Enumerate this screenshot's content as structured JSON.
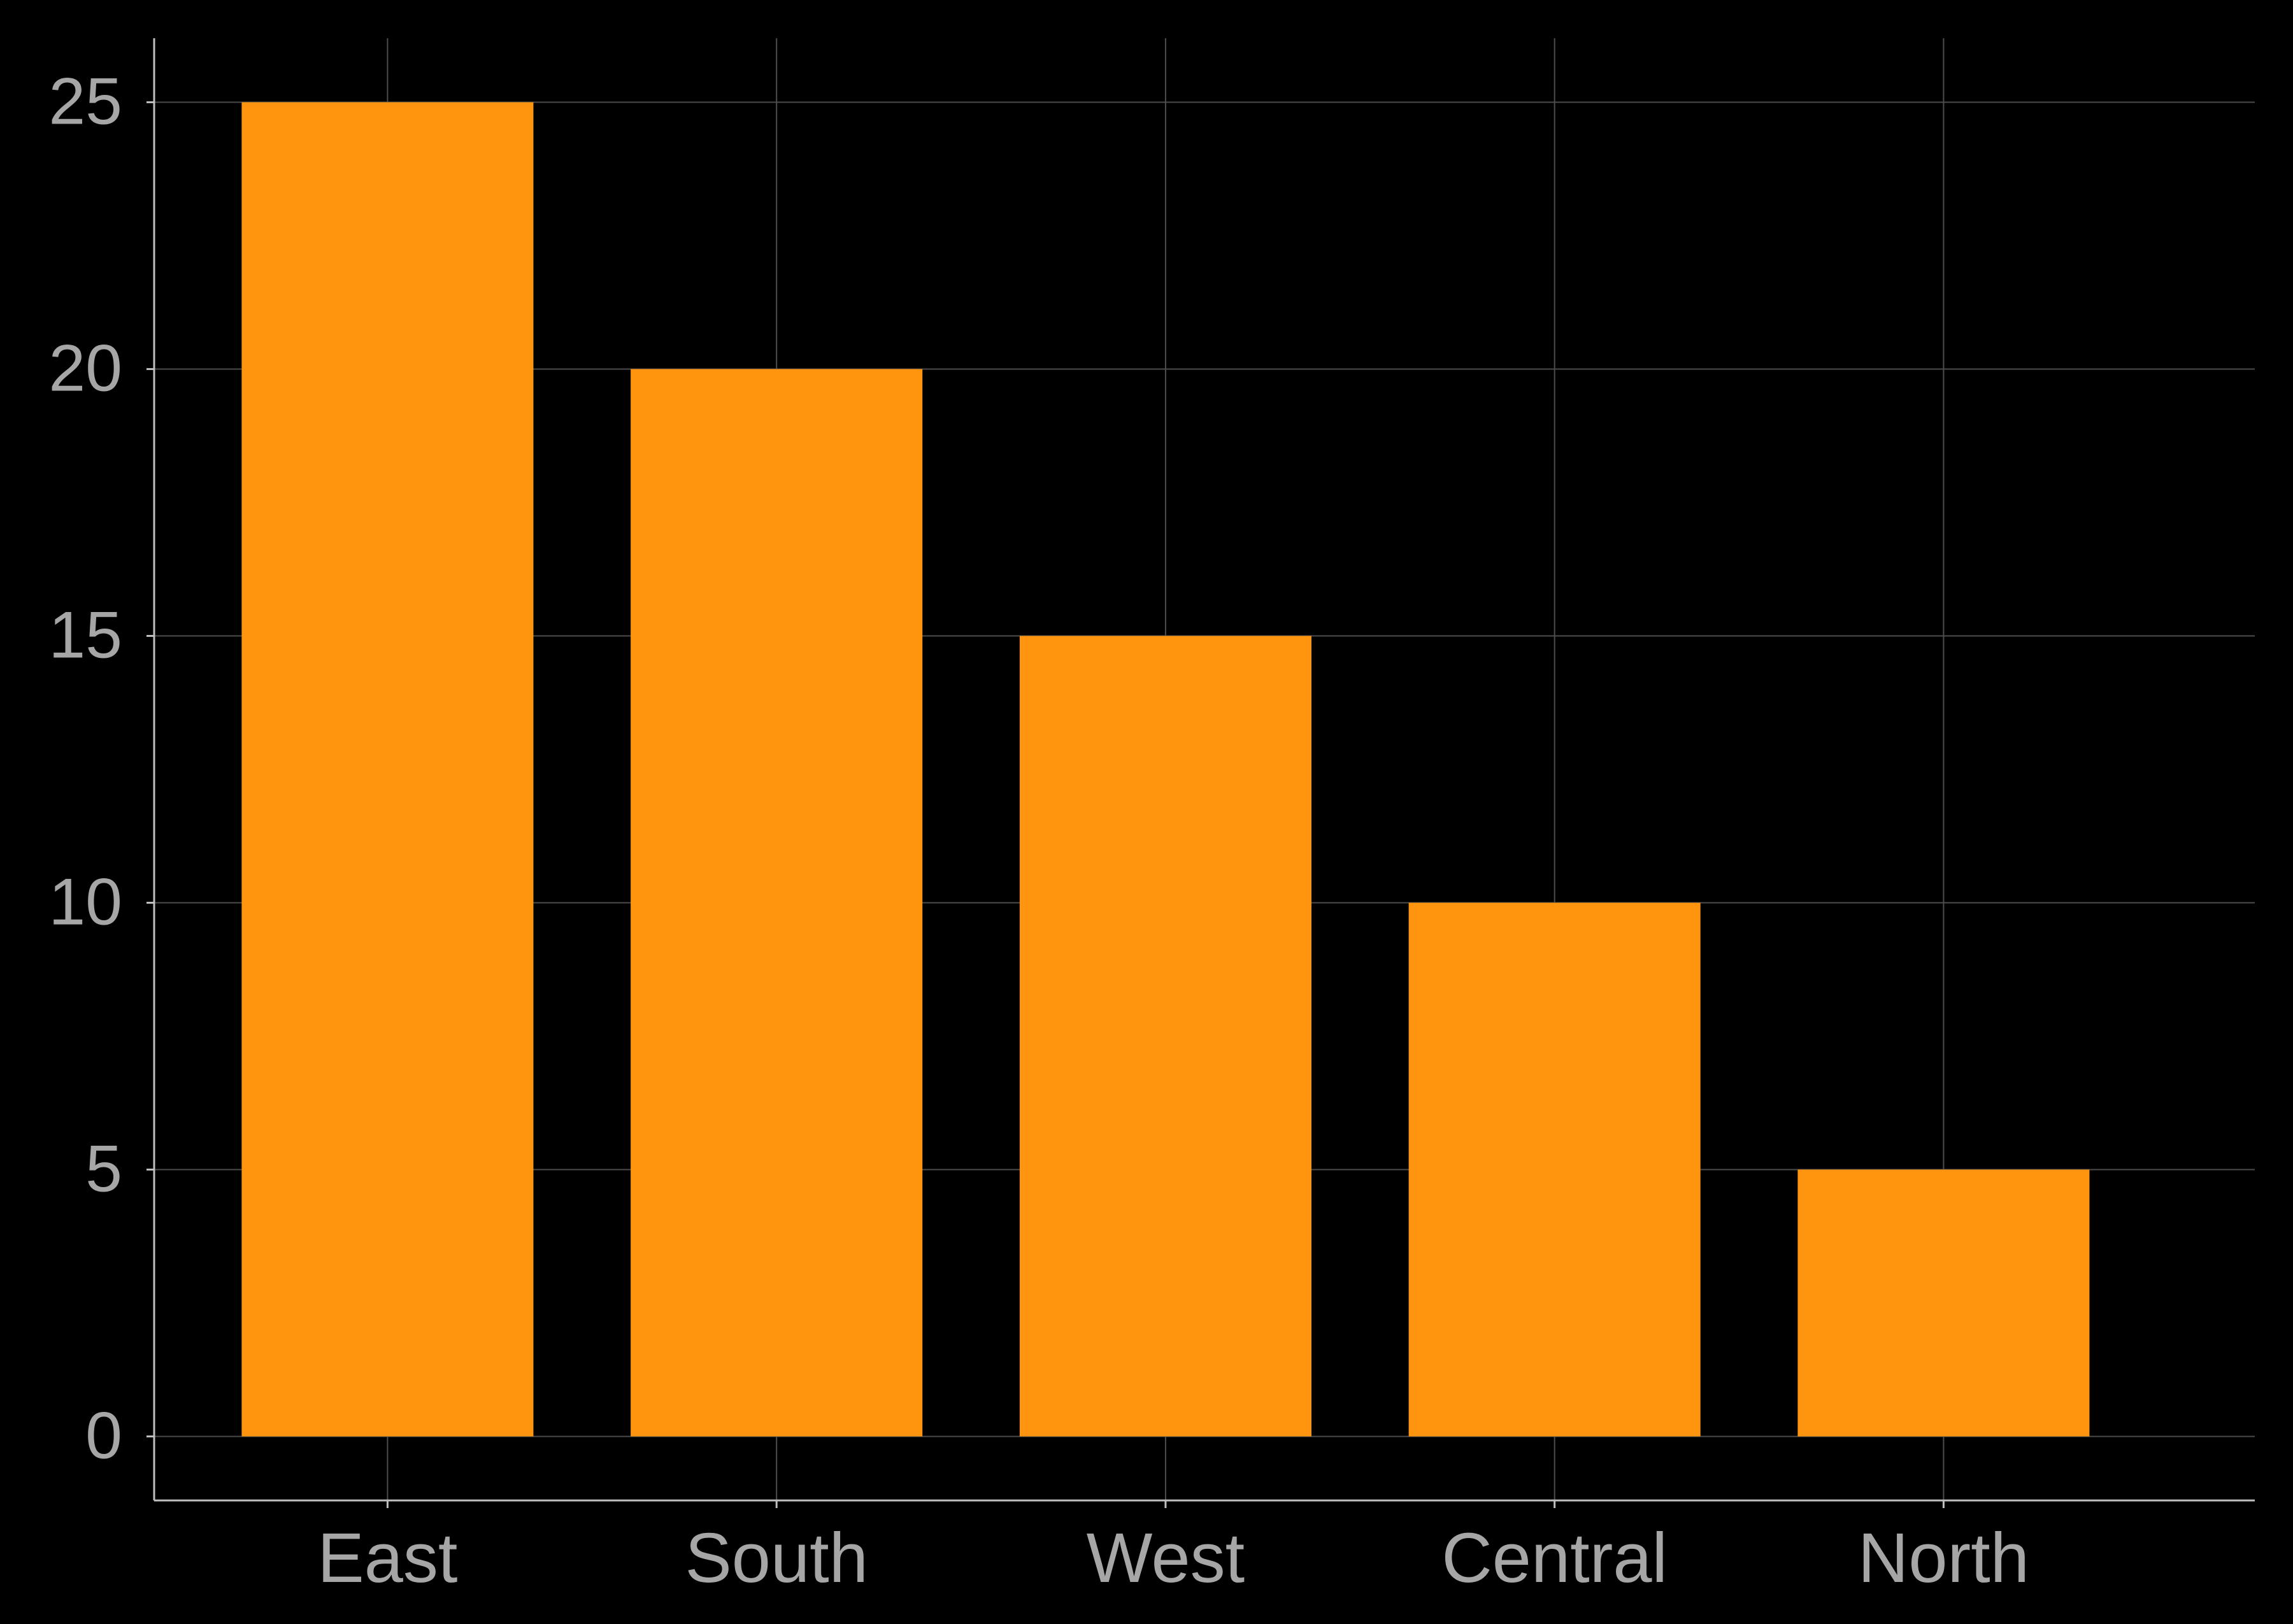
{
  "chart_data": {
    "type": "bar",
    "categories": [
      "East",
      "South",
      "West",
      "Central",
      "North"
    ],
    "values": [
      25,
      20,
      15,
      10,
      5
    ],
    "ylim": [
      -1.2,
      26.2
    ],
    "yticks": [
      0,
      5,
      10,
      15,
      20,
      25
    ],
    "grid": true,
    "legend": "none"
  },
  "colors": {
    "background": "#000000",
    "bar": "#ff950e",
    "grid": "#4d4d4d",
    "axis": "#bfbfbf",
    "tick_label": "#a6a6a6"
  }
}
